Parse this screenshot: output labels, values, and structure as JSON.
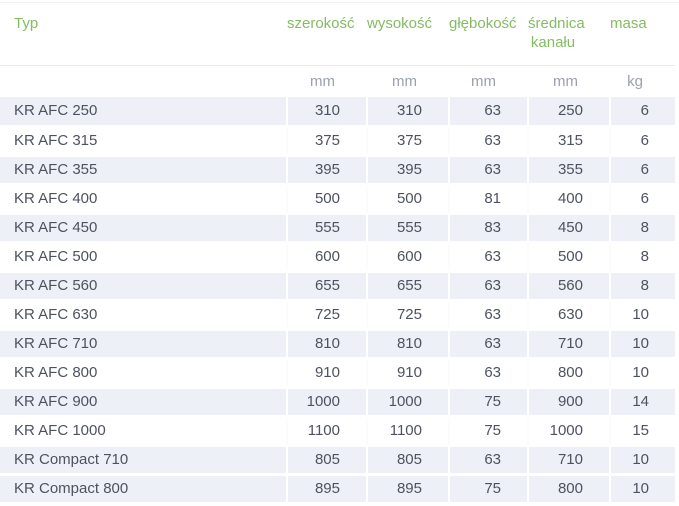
{
  "colors": {
    "header_text_green": "#84bc62",
    "units_text_gray": "#9aa1ad",
    "cell_text": "#4d525e",
    "row_shade": "#edf0f7",
    "header_divider": "#e9ebf1"
  },
  "table": {
    "columns": [
      {
        "key": "typ",
        "label": "Typ",
        "label2": "",
        "unit": ""
      },
      {
        "key": "szerokosc",
        "label": "szerokość",
        "label2": "",
        "unit": "mm"
      },
      {
        "key": "wysokosc",
        "label": "wysokość",
        "label2": "",
        "unit": "mm"
      },
      {
        "key": "glebokosc",
        "label": "głębokość",
        "label2": "",
        "unit": "mm"
      },
      {
        "key": "srednica_kanalu",
        "label": "średnica",
        "label2": "kanału",
        "unit": "mm"
      },
      {
        "key": "masa",
        "label": "masa",
        "label2": "",
        "unit": "kg"
      }
    ],
    "rows": [
      {
        "typ": "KR AFC 250",
        "szerokosc": "310",
        "wysokosc": "310",
        "glebokosc": "63",
        "srednica_kanalu": "250",
        "masa": "6",
        "shaded": true
      },
      {
        "typ": "KR AFC 315",
        "szerokosc": "375",
        "wysokosc": "375",
        "glebokosc": "63",
        "srednica_kanalu": "315",
        "masa": "6",
        "shaded": false
      },
      {
        "typ": "KR AFC 355",
        "szerokosc": "395",
        "wysokosc": "395",
        "glebokosc": "63",
        "srednica_kanalu": "355",
        "masa": "6",
        "shaded": true
      },
      {
        "typ": "KR AFC 400",
        "szerokosc": "500",
        "wysokosc": "500",
        "glebokosc": "81",
        "srednica_kanalu": "400",
        "masa": "6",
        "shaded": false
      },
      {
        "typ": "KR AFC 450",
        "szerokosc": "555",
        "wysokosc": "555",
        "glebokosc": "83",
        "srednica_kanalu": "450",
        "masa": "8",
        "shaded": true
      },
      {
        "typ": "KR AFC 500",
        "szerokosc": "600",
        "wysokosc": "600",
        "glebokosc": "63",
        "srednica_kanalu": "500",
        "masa": "8",
        "shaded": false
      },
      {
        "typ": "KR AFC 560",
        "szerokosc": "655",
        "wysokosc": "655",
        "glebokosc": "63",
        "srednica_kanalu": "560",
        "masa": "8",
        "shaded": true
      },
      {
        "typ": "KR AFC 630",
        "szerokosc": "725",
        "wysokosc": "725",
        "glebokosc": "63",
        "srednica_kanalu": "630",
        "masa": "10",
        "shaded": false
      },
      {
        "typ": "KR AFC 710",
        "szerokosc": "810",
        "wysokosc": "810",
        "glebokosc": "63",
        "srednica_kanalu": "710",
        "masa": "10",
        "shaded": true
      },
      {
        "typ": "KR AFC 800",
        "szerokosc": "910",
        "wysokosc": "910",
        "glebokosc": "63",
        "srednica_kanalu": "800",
        "masa": "10",
        "shaded": false
      },
      {
        "typ": "KR AFC 900",
        "szerokosc": "1000",
        "wysokosc": "1000",
        "glebokosc": "75",
        "srednica_kanalu": "900",
        "masa": "14",
        "shaded": true
      },
      {
        "typ": "KR AFC 1000",
        "szerokosc": "1100",
        "wysokosc": "1100",
        "glebokosc": "75",
        "srednica_kanalu": "1000",
        "masa": "15",
        "shaded": false
      },
      {
        "typ": "KR Compact 710",
        "szerokosc": "805",
        "wysokosc": "805",
        "glebokosc": "63",
        "srednica_kanalu": "710",
        "masa": "10",
        "shaded": true
      },
      {
        "typ": "KR Compact 800",
        "szerokosc": "895",
        "wysokosc": "895",
        "glebokosc": "75",
        "srednica_kanalu": "800",
        "masa": "10",
        "shaded": true
      }
    ]
  }
}
